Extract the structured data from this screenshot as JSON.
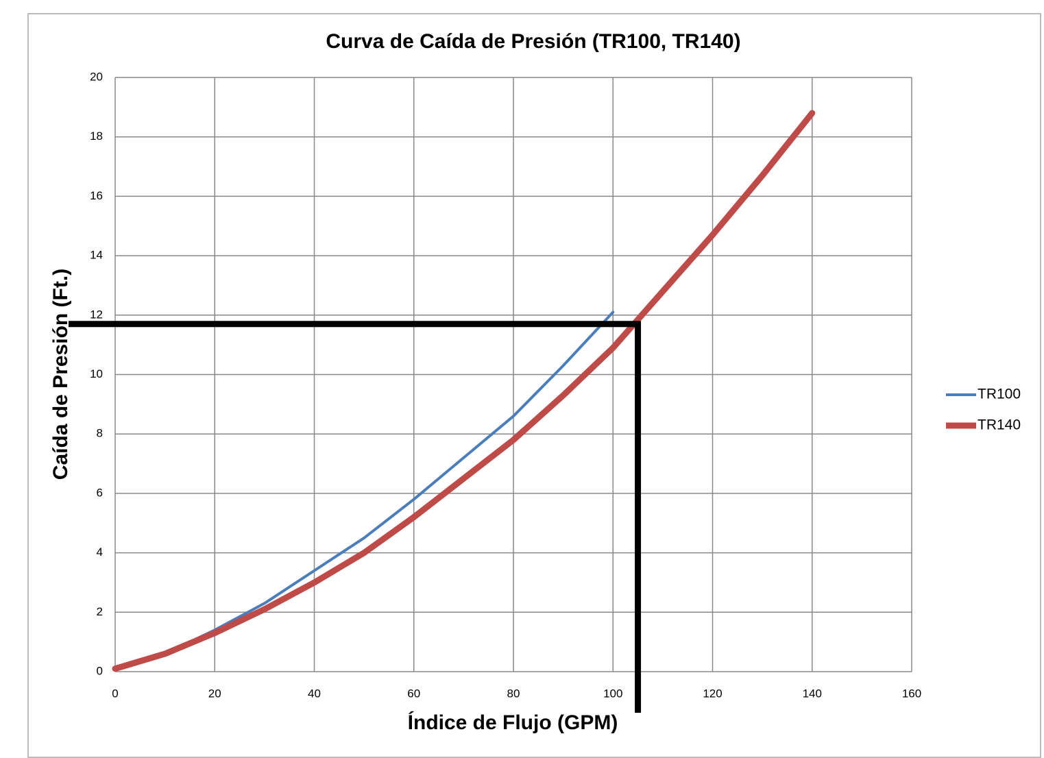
{
  "chart_data": {
    "type": "line",
    "title": "Curva de Caída de Presión (TR100, TR140)",
    "x_label": "Índice de Flujo (GPM)",
    "y_label": "Caída de Presión (Ft.)",
    "series": [
      {
        "name": "TR100",
        "color": "#4a7ebb",
        "width": 4,
        "x": [
          0,
          10,
          20,
          30,
          40,
          50,
          60,
          70,
          80,
          90,
          100
        ],
        "values": [
          0.1,
          0.6,
          1.4,
          2.3,
          3.4,
          4.5,
          5.8,
          7.2,
          8.6,
          10.3,
          12.1
        ]
      },
      {
        "name": "TR140",
        "color": "#be4b48",
        "width": 9,
        "x": [
          0,
          10,
          20,
          30,
          40,
          50,
          60,
          70,
          80,
          90,
          100,
          110,
          120,
          130,
          140
        ],
        "values": [
          0.1,
          0.6,
          1.3,
          2.1,
          3.0,
          4.0,
          5.2,
          6.5,
          7.8,
          9.3,
          10.9,
          12.8,
          14.7,
          16.7,
          18.8
        ]
      }
    ],
    "reference": {
      "x": 105,
      "y": 11.7,
      "color": "#000000"
    },
    "xlim": [
      0,
      160
    ],
    "xticks": [
      0,
      20,
      40,
      60,
      80,
      100,
      120,
      140,
      160
    ],
    "ylim": [
      0,
      20
    ],
    "yticks": [
      0,
      2,
      4,
      6,
      8,
      10,
      12,
      14,
      16,
      18,
      20
    ],
    "grid": true,
    "legend": "right"
  }
}
